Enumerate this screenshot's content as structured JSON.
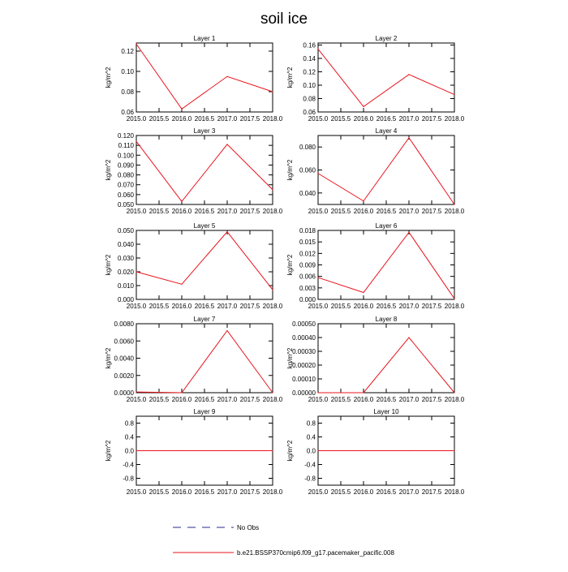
{
  "chart_data": {
    "type": "line",
    "title": "soil ice",
    "x": [
      2015.0,
      2016.0,
      2017.0,
      2018.0
    ],
    "xlim": [
      2015.0,
      2018.0
    ],
    "xticks": [
      "2015.0",
      "2015.5",
      "2016.0",
      "2016.5",
      "2017.0",
      "2017.5",
      "2018.0"
    ],
    "ylabel": "kg/m^2",
    "grid": false,
    "line_color": "#e8141c",
    "legend": {
      "placement": "bottom",
      "entries": [
        {
          "label": "No Obs",
          "style": "dashed",
          "color": "#2a2a8c"
        },
        {
          "label": "b.e21.BSSP370cmip6.f09_g17.pacemaker_pacific.008",
          "style": "solid",
          "color": "#e8141c"
        }
      ]
    },
    "panels": [
      {
        "title": "Layer 1",
        "ylim": [
          0.06,
          0.128
        ],
        "yticks": [
          "0.06",
          "0.08",
          "0.10",
          "0.12"
        ],
        "series": [
          {
            "name": "b.e21.BSSP370cmip6.f09_g17.pacemaker_pacific.008",
            "values": [
              0.127,
              0.063,
              0.095,
              0.08
            ]
          }
        ]
      },
      {
        "title": "Layer 2",
        "ylim": [
          0.06,
          0.163
        ],
        "yticks": [
          "0.06",
          "0.08",
          "0.10",
          "0.12",
          "0.14",
          "0.16"
        ],
        "series": [
          {
            "name": "b.e21.BSSP370cmip6.f09_g17.pacemaker_pacific.008",
            "values": [
              0.154,
              0.068,
              0.116,
              0.086
            ]
          }
        ]
      },
      {
        "title": "Layer 3",
        "ylim": [
          0.05,
          0.12
        ],
        "yticks": [
          "0.050",
          "0.060",
          "0.070",
          "0.080",
          "0.090",
          "0.100",
          "0.110",
          "0.120"
        ],
        "series": [
          {
            "name": "b.e21.BSSP370cmip6.f09_g17.pacemaker_pacific.008",
            "values": [
              0.114,
              0.053,
              0.111,
              0.065
            ]
          }
        ]
      },
      {
        "title": "Layer 4",
        "ylim": [
          0.03,
          0.09
        ],
        "yticks": [
          "0.040",
          "0.060",
          "0.080"
        ],
        "series": [
          {
            "name": "b.e21.BSSP370cmip6.f09_g17.pacemaker_pacific.008",
            "values": [
              0.057,
              0.033,
              0.088,
              0.03
            ]
          }
        ]
      },
      {
        "title": "Layer 5",
        "ylim": [
          0.0,
          0.05
        ],
        "yticks": [
          "0.000",
          "0.010",
          "0.020",
          "0.030",
          "0.040",
          "0.050"
        ],
        "series": [
          {
            "name": "b.e21.BSSP370cmip6.f09_g17.pacemaker_pacific.008",
            "values": [
              0.02,
              0.011,
              0.049,
              0.007
            ]
          }
        ]
      },
      {
        "title": "Layer 6",
        "ylim": [
          0.0,
          0.018
        ],
        "yticks": [
          "0.000",
          "0.003",
          "0.006",
          "0.009",
          "0.012",
          "0.015",
          "0.018"
        ],
        "series": [
          {
            "name": "b.e21.BSSP370cmip6.f09_g17.pacemaker_pacific.008",
            "values": [
              0.0057,
              0.0018,
              0.0175,
              0.0002
            ]
          }
        ]
      },
      {
        "title": "Layer 7",
        "ylim": [
          0.0,
          0.008
        ],
        "yticks": [
          "0.0000",
          "0.0020",
          "0.0040",
          "0.0060",
          "0.0080"
        ],
        "series": [
          {
            "name": "b.e21.BSSP370cmip6.f09_g17.pacemaker_pacific.008",
            "values": [
              8e-05,
              0.0,
              0.0072,
              0.0
            ]
          }
        ]
      },
      {
        "title": "Layer 8",
        "ylim": [
          0.0,
          0.0005
        ],
        "yticks": [
          "0.00000",
          "0.00010",
          "0.00020",
          "0.00030",
          "0.00040",
          "0.00050"
        ],
        "series": [
          {
            "name": "b.e21.BSSP370cmip6.f09_g17.pacemaker_pacific.008",
            "values": [
              0.0,
              0.0,
              0.0004,
              0.0
            ]
          }
        ]
      },
      {
        "title": "Layer 9",
        "ylim": [
          -1.0,
          1.0
        ],
        "yticks": [
          "-0.8",
          "-0.4",
          "0.0",
          "0.4",
          "0.8"
        ],
        "series": [
          {
            "name": "b.e21.BSSP370cmip6.f09_g17.pacemaker_pacific.008",
            "values": [
              0.0,
              0.0,
              0.0,
              0.0
            ]
          }
        ]
      },
      {
        "title": "Layer 10",
        "ylim": [
          -1.0,
          1.0
        ],
        "yticks": [
          "-0.8",
          "-0.4",
          "0.0",
          "0.4",
          "0.8"
        ],
        "series": [
          {
            "name": "b.e21.BSSP370cmip6.f09_g17.pacemaker_pacific.008",
            "values": [
              0.0,
              0.0,
              0.0,
              0.0
            ]
          }
        ]
      }
    ]
  }
}
